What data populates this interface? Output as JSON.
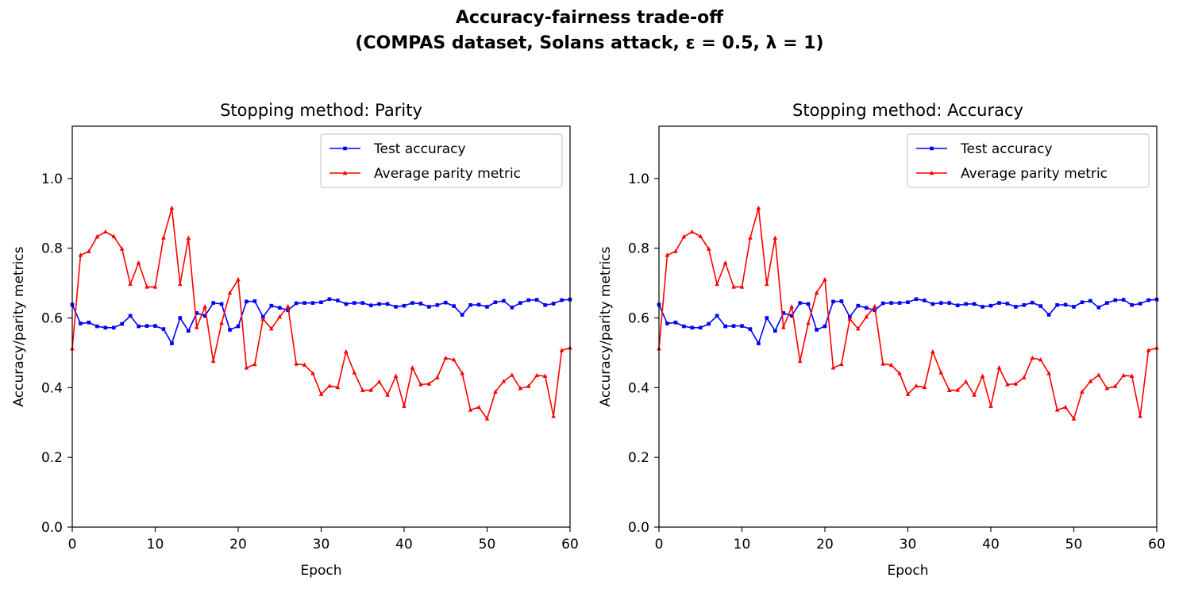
{
  "figure": {
    "title_line1": "Accuracy-fairness trade-off",
    "title_line2": "(COMPAS dataset, Solans attack, ε = 0.5, λ = 1)"
  },
  "colors": {
    "test_accuracy": "#0000ff",
    "parity": "#ff0000",
    "axes": "#000000"
  },
  "chart_data": [
    {
      "type": "line",
      "title": "Stopping method: Parity",
      "xlabel": "Epoch",
      "ylabel": "Accuracy/parity metrics",
      "xlim": [
        0,
        60
      ],
      "ylim": [
        0,
        1.15
      ],
      "xticks": [
        0,
        10,
        20,
        30,
        40,
        50,
        60
      ],
      "yticks": [
        0.0,
        0.2,
        0.4,
        0.6,
        0.8,
        1.0
      ],
      "ytick_labels": [
        "0.0",
        "0.2",
        "0.4",
        "0.6",
        "0.8",
        "1.0"
      ],
      "legend_position": "upper right",
      "grid": false,
      "series": [
        {
          "name": "Test accuracy",
          "color": "#0000ff",
          "marker": "square",
          "values": [
            0.638,
            0.584,
            0.587,
            0.576,
            0.572,
            0.572,
            0.583,
            0.606,
            0.576,
            0.577,
            0.577,
            0.568,
            0.527,
            0.6,
            0.563,
            0.614,
            0.606,
            0.643,
            0.64,
            0.566,
            0.576,
            0.647,
            0.648,
            0.603,
            0.635,
            0.629,
            0.622,
            0.642,
            0.643,
            0.643,
            0.645,
            0.654,
            0.65,
            0.64,
            0.643,
            0.643,
            0.636,
            0.64,
            0.64,
            0.632,
            0.635,
            0.643,
            0.641,
            0.632,
            0.637,
            0.644,
            0.634,
            0.609,
            0.637,
            0.638,
            0.632,
            0.645,
            0.649,
            0.63,
            0.643,
            0.651,
            0.652,
            0.637,
            0.641,
            0.651,
            0.653
          ]
        },
        {
          "name": "Average parity metric",
          "color": "#ff0000",
          "marker": "triangle",
          "values": [
            0.512,
            0.78,
            0.791,
            0.833,
            0.847,
            0.834,
            0.798,
            0.697,
            0.758,
            0.689,
            0.689,
            0.83,
            0.915,
            0.697,
            0.829,
            0.573,
            0.632,
            0.476,
            0.585,
            0.672,
            0.71,
            0.457,
            0.467,
            0.597,
            0.569,
            0.603,
            0.633,
            0.468,
            0.465,
            0.441,
            0.381,
            0.405,
            0.401,
            0.503,
            0.443,
            0.392,
            0.393,
            0.417,
            0.379,
            0.433,
            0.347,
            0.457,
            0.409,
            0.411,
            0.429,
            0.485,
            0.48,
            0.441,
            0.336,
            0.344,
            0.311,
            0.388,
            0.418,
            0.436,
            0.398,
            0.404,
            0.435,
            0.433,
            0.318,
            0.507,
            0.514
          ]
        }
      ]
    },
    {
      "type": "line",
      "title": "Stopping method: Accuracy",
      "xlabel": "Epoch",
      "ylabel": "Accuracy/parity metrics",
      "xlim": [
        0,
        60
      ],
      "ylim": [
        0,
        1.15
      ],
      "xticks": [
        0,
        10,
        20,
        30,
        40,
        50,
        60
      ],
      "yticks": [
        0.0,
        0.2,
        0.4,
        0.6,
        0.8,
        1.0
      ],
      "ytick_labels": [
        "0.0",
        "0.2",
        "0.4",
        "0.6",
        "0.8",
        "1.0"
      ],
      "legend_position": "upper right",
      "grid": false,
      "series": [
        {
          "name": "Test accuracy",
          "color": "#0000ff",
          "marker": "square",
          "values": [
            0.638,
            0.584,
            0.587,
            0.576,
            0.572,
            0.572,
            0.583,
            0.606,
            0.576,
            0.577,
            0.577,
            0.568,
            0.527,
            0.6,
            0.563,
            0.614,
            0.606,
            0.643,
            0.64,
            0.566,
            0.576,
            0.647,
            0.648,
            0.603,
            0.635,
            0.629,
            0.622,
            0.642,
            0.643,
            0.643,
            0.645,
            0.654,
            0.65,
            0.64,
            0.643,
            0.643,
            0.636,
            0.64,
            0.64,
            0.632,
            0.635,
            0.643,
            0.641,
            0.632,
            0.637,
            0.644,
            0.634,
            0.609,
            0.637,
            0.638,
            0.632,
            0.645,
            0.649,
            0.63,
            0.643,
            0.651,
            0.652,
            0.637,
            0.641,
            0.651,
            0.653
          ]
        },
        {
          "name": "Average parity metric",
          "color": "#ff0000",
          "marker": "triangle",
          "values": [
            0.512,
            0.78,
            0.791,
            0.833,
            0.847,
            0.834,
            0.798,
            0.697,
            0.758,
            0.689,
            0.689,
            0.83,
            0.915,
            0.697,
            0.829,
            0.573,
            0.632,
            0.476,
            0.585,
            0.672,
            0.71,
            0.457,
            0.467,
            0.597,
            0.569,
            0.603,
            0.633,
            0.468,
            0.465,
            0.441,
            0.381,
            0.405,
            0.401,
            0.503,
            0.443,
            0.392,
            0.393,
            0.417,
            0.379,
            0.433,
            0.347,
            0.457,
            0.409,
            0.411,
            0.429,
            0.485,
            0.48,
            0.441,
            0.336,
            0.344,
            0.311,
            0.388,
            0.418,
            0.436,
            0.398,
            0.404,
            0.435,
            0.433,
            0.318,
            0.507,
            0.514
          ]
        }
      ]
    }
  ]
}
